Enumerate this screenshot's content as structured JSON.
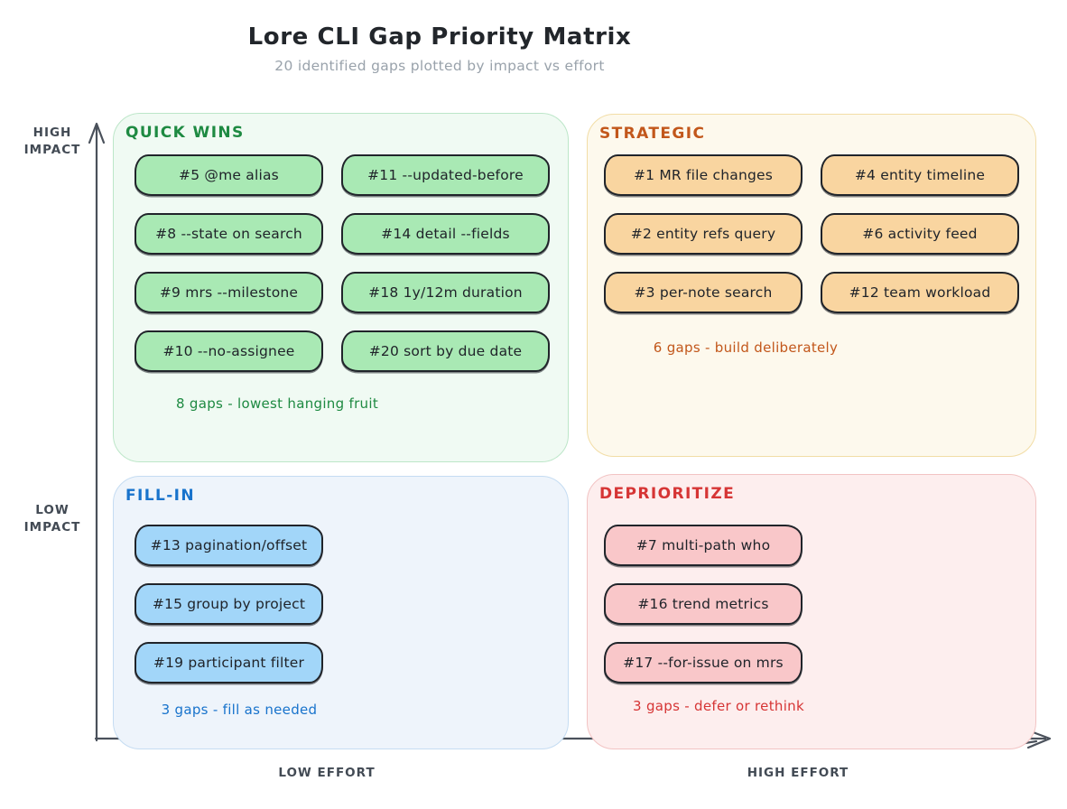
{
  "header": {
    "title": "Lore CLI Gap Priority Matrix",
    "subtitle": "20 identified gaps plotted by impact vs effort"
  },
  "axes": {
    "y_top_label": "HIGH\nIMPACT",
    "y_bottom_label": "LOW\nIMPACT",
    "x_left_label": "LOW EFFORT",
    "x_right_label": "HIGH EFFORT",
    "stroke_color": "#4a515b"
  },
  "quadrants": [
    {
      "id": "quick-wins",
      "label": "QUICK WINS",
      "items": [
        "#5 @me alias",
        "#11 --updated-before",
        "#8 --state on search",
        "#14 detail --fields",
        "#9 mrs --milestone",
        "#18 1y/12m duration",
        "#10 --no-assignee",
        "#20 sort by due date"
      ],
      "caption": "8 gaps - lowest hanging fruit",
      "colors": {
        "accent": "#1e8a42",
        "pill_bg": "#a9e9b4",
        "panel_bg": "#f0faf3",
        "panel_border": "#bce6c8"
      }
    },
    {
      "id": "strategic",
      "label": "STRATEGIC",
      "items": [
        "#1 MR file changes",
        "#4 entity timeline",
        "#2 entity refs query",
        "#6 activity feed",
        "#3 per-note search",
        "#12 team workload"
      ],
      "caption": "6 gaps - build deliberately",
      "colors": {
        "accent": "#c2571b",
        "pill_bg": "#f9d5a0",
        "panel_bg": "#fdf9ed",
        "panel_border": "#f2dda6"
      }
    },
    {
      "id": "fill-in",
      "label": "FILL-IN",
      "items": [
        "#13 pagination/offset",
        "#15 group by project",
        "#19 participant filter"
      ],
      "caption": "3 gaps - fill as needed",
      "colors": {
        "accent": "#1873cc",
        "pill_bg": "#a2d6f9",
        "panel_bg": "#eef4fb",
        "panel_border": "#c5dcf2"
      }
    },
    {
      "id": "deprioritize",
      "label": "DEPRIORITIZE",
      "items": [
        "#7 multi-path who",
        "#16 trend metrics",
        "#17 --for-issue on mrs"
      ],
      "caption": "3 gaps - defer or rethink",
      "colors": {
        "accent": "#d63535",
        "pill_bg": "#f9c7c9",
        "panel_bg": "#fdeeee",
        "panel_border": "#f2c3c3"
      }
    }
  ]
}
